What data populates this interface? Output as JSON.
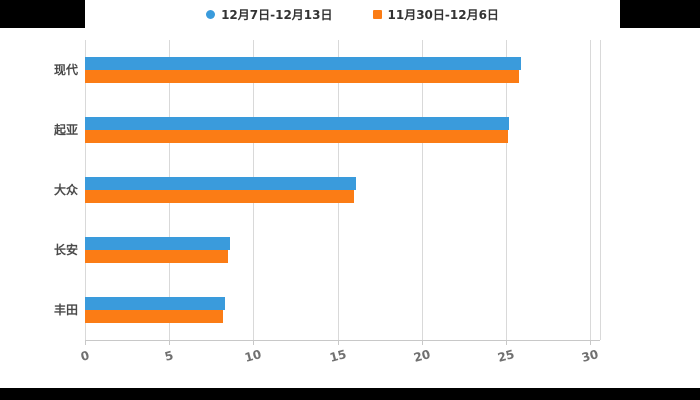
{
  "legend": {
    "items": [
      {
        "label": "12月7日-12月13日",
        "color": "#3A9BDC",
        "shape": "circle"
      },
      {
        "label": "11月30日-12月6日",
        "color": "#FB7C15",
        "shape": "square"
      }
    ]
  },
  "chart_data": {
    "type": "bar",
    "orientation": "horizontal",
    "title": "",
    "xlabel": "",
    "ylabel": "",
    "categories": [
      "现代",
      "起亚",
      "大众",
      "长安",
      "丰田"
    ],
    "series": [
      {
        "name": "12月7日-12月13日",
        "color": "#3A9BDC",
        "values": [
          25.9,
          25.2,
          16.1,
          8.6,
          8.3
        ]
      },
      {
        "name": "11月30日-12月6日",
        "color": "#FB7C15",
        "values": [
          25.8,
          25.1,
          16.0,
          8.5,
          8.2
        ]
      }
    ],
    "xlim": [
      0,
      30
    ],
    "xticks": [
      0,
      5,
      10,
      15,
      20,
      25,
      30
    ],
    "grid": true,
    "legend_position": "top"
  },
  "colors": {
    "background": "#000000",
    "panel": "#ffffff",
    "gridline": "#d9d9d9",
    "axis": "#c8c8c8",
    "tick_label": "#707070",
    "category_label": "#4a4a4a",
    "legend_label": "#333333"
  }
}
